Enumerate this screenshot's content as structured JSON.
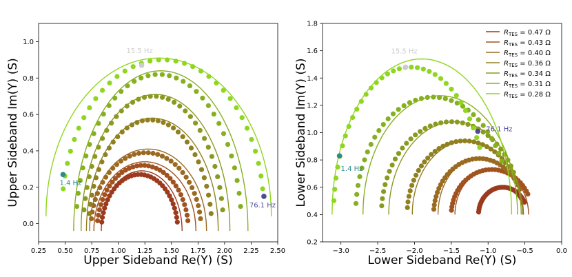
{
  "chart_data": [
    {
      "type": "scatter",
      "title": "",
      "xlabel": "Upper Sideband Re(Y) (S)",
      "ylabel": "Upper Sideband Im(Y) (S)",
      "xlim": [
        0.25,
        2.5
      ],
      "ylim": [
        -0.1,
        1.1
      ],
      "xticks": [
        0.25,
        0.5,
        0.75,
        1.0,
        1.25,
        1.5,
        1.75,
        2.0,
        2.25,
        2.5
      ],
      "xtick_labels": [
        "0.25",
        "0.50",
        "0.75",
        "1.00",
        "1.25",
        "1.50",
        "1.75",
        "2.00",
        "2.25",
        "2.50"
      ],
      "yticks": [
        0.0,
        0.2,
        0.4,
        0.6,
        0.8,
        1.0
      ],
      "ytick_labels": [
        "0.0",
        "0.2",
        "0.4",
        "0.6",
        "0.8",
        "1.0"
      ],
      "series": [
        {
          "name": "R_TES = 0.47 Ω",
          "color": "#9b3a1f",
          "data_arc": {
            "cx": 1.2,
            "cy": -0.04,
            "rx": 0.36,
            "ry": 0.31
          },
          "fit_arc": {
            "cx": 1.22,
            "cy": -0.04,
            "rx": 0.38,
            "ry": 0.33
          }
        },
        {
          "name": "R_TES = 0.43 Ω",
          "color": "#a0521f",
          "data_arc": {
            "cx": 1.23,
            "cy": -0.04,
            "rx": 0.43,
            "ry": 0.36
          },
          "fit_arc": {
            "cx": 1.25,
            "cy": -0.04,
            "rx": 0.48,
            "ry": 0.38
          }
        },
        {
          "name": "R_TES = 0.40 Ω",
          "color": "#9a6a20",
          "data_arc": {
            "cx": 1.26,
            "cy": -0.04,
            "rx": 0.52,
            "ry": 0.43
          },
          "fit_arc": {
            "cx": 1.28,
            "cy": -0.04,
            "rx": 0.55,
            "ry": 0.45
          }
        },
        {
          "name": "R_TES = 0.36 Ω",
          "color": "#908020",
          "data_arc": {
            "cx": 1.3,
            "cy": -0.04,
            "rx": 0.58,
            "ry": 0.61
          },
          "fit_arc": {
            "cx": 1.32,
            "cy": -0.04,
            "rx": 0.62,
            "ry": 0.62
          }
        },
        {
          "name": "R_TES = 0.34 Ω",
          "color": "#8a9a20",
          "data_arc": {
            "cx": 1.33,
            "cy": -0.04,
            "rx": 0.66,
            "ry": 0.74
          },
          "fit_arc": {
            "cx": 1.35,
            "cy": -0.04,
            "rx": 0.7,
            "ry": 0.75
          }
        },
        {
          "name": "R_TES = 0.31 Ω",
          "color": "#86b020",
          "data_arc": {
            "cx": 1.38,
            "cy": -0.04,
            "rx": 0.78,
            "ry": 0.86
          },
          "fit_arc": {
            "cx": 1.4,
            "cy": -0.04,
            "rx": 0.82,
            "ry": 0.88
          }
        },
        {
          "name": "R_TES = 0.28 Ω",
          "color": "#8fd61f",
          "data_arc": {
            "cx": 1.42,
            "cy": 0.06,
            "rx": 0.95,
            "ry": 0.84
          },
          "fit_arc": {
            "cx": 1.38,
            "cy": 0.04,
            "rx": 1.06,
            "ry": 0.87
          }
        }
      ],
      "markers": [
        {
          "label": "1.4 Hz",
          "x": 0.48,
          "y": 0.27,
          "color": "#2e8b8b"
        },
        {
          "label": "15.5 Hz",
          "x": 1.22,
          "y": 0.87,
          "color": "#cccccc"
        },
        {
          "label": "76.1 Hz",
          "x": 2.37,
          "y": 0.15,
          "color": "#4b4b9a"
        }
      ]
    },
    {
      "type": "scatter",
      "title": "",
      "xlabel": "Lower Sideband Re(Y) (S)",
      "ylabel": "Lower Sideband Im(Y) (S)",
      "xlim": [
        -3.25,
        0.0
      ],
      "ylim": [
        0.2,
        1.8
      ],
      "xticks": [
        -3.0,
        -2.5,
        -2.0,
        -1.5,
        -1.0,
        -0.5,
        0.0
      ],
      "xtick_labels": [
        "−3.0",
        "−2.5",
        "−2.0",
        "−1.5",
        "−1.0",
        "−0.5",
        "0.0"
      ],
      "yticks": [
        0.2,
        0.4,
        0.6,
        0.8,
        1.0,
        1.2,
        1.4,
        1.6,
        1.8
      ],
      "ytick_labels": [
        "0.2",
        "0.4",
        "0.6",
        "0.8",
        "1.0",
        "1.2",
        "1.4",
        "1.6",
        "1.8"
      ],
      "series": [
        {
          "name": "R_TES = 0.47 Ω",
          "color": "#9b3a1f",
          "data_arc": {
            "cx": -0.8,
            "cy": 0.4,
            "rx": 0.33,
            "ry": 0.2
          },
          "fit_arc": {
            "cx": -0.82,
            "cy": 0.4,
            "rx": 0.3,
            "ry": 0.2
          }
        },
        {
          "name": "R_TES = 0.43 Ω",
          "color": "#a0521f",
          "data_arc": {
            "cx": -0.95,
            "cy": 0.4,
            "rx": 0.55,
            "ry": 0.33
          },
          "fit_arc": {
            "cx": -0.95,
            "cy": 0.4,
            "rx": 0.5,
            "ry": 0.33
          }
        },
        {
          "name": "R_TES = 0.40 Ω",
          "color": "#9a6a20",
          "data_arc": {
            "cx": -1.12,
            "cy": 0.4,
            "rx": 0.62,
            "ry": 0.41
          },
          "fit_arc": {
            "cx": -1.1,
            "cy": 0.4,
            "rx": 0.58,
            "ry": 0.42
          }
        },
        {
          "name": "R_TES = 0.36 Ω",
          "color": "#908020",
          "data_arc": {
            "cx": -1.32,
            "cy": 0.4,
            "rx": 0.78,
            "ry": 0.54
          },
          "fit_arc": {
            "cx": -1.28,
            "cy": 0.4,
            "rx": 0.75,
            "ry": 0.54
          }
        },
        {
          "name": "R_TES = 0.34 Ω",
          "color": "#8a9a20",
          "data_arc": {
            "cx": -1.5,
            "cy": 0.4,
            "rx": 0.95,
            "ry": 0.68
          },
          "fit_arc": {
            "cx": -1.45,
            "cy": 0.4,
            "rx": 0.9,
            "ry": 0.68
          }
        },
        {
          "name": "R_TES = 0.31 Ω",
          "color": "#86b020",
          "data_arc": {
            "cx": -1.75,
            "cy": 0.4,
            "rx": 1.05,
            "ry": 0.86
          },
          "fit_arc": {
            "cx": -1.65,
            "cy": 0.4,
            "rx": 1.05,
            "ry": 0.87
          }
        },
        {
          "name": "R_TES = 0.28 Ω",
          "color": "#8fd61f",
          "data_arc": {
            "cx": -2.05,
            "cy": 0.4,
            "rx": 1.05,
            "ry": 1.08
          },
          "fit_arc": {
            "cx": -1.9,
            "cy": 0.4,
            "rx": 1.22,
            "ry": 1.14
          }
        }
      ],
      "markers": [
        {
          "label": "1.4 Hz",
          "x": -3.02,
          "y": 0.83,
          "color": "#2e8b8b"
        },
        {
          "label": "15.5 Hz",
          "x": -2.12,
          "y": 1.48,
          "color": "#cccccc"
        },
        {
          "label": "76.1 Hz",
          "x": -1.14,
          "y": 1.01,
          "color": "#4b4b9a"
        }
      ],
      "legend": {
        "placement": "top-right",
        "entries": [
          {
            "symbol": "R",
            "subscript": "TES",
            "text": " = 0.47 Ω",
            "color": "#9b3a1f"
          },
          {
            "symbol": "R",
            "subscript": "TES",
            "text": " = 0.43 Ω",
            "color": "#a0521f"
          },
          {
            "symbol": "R",
            "subscript": "TES",
            "text": " = 0.40 Ω",
            "color": "#9a6a20"
          },
          {
            "symbol": "R",
            "subscript": "TES",
            "text": " = 0.36 Ω",
            "color": "#908020"
          },
          {
            "symbol": "R",
            "subscript": "TES",
            "text": " = 0.34 Ω",
            "color": "#8a9a20"
          },
          {
            "symbol": "R",
            "subscript": "TES",
            "text": " = 0.31 Ω",
            "color": "#86b020"
          },
          {
            "symbol": "R",
            "subscript": "TES",
            "text": " = 0.28 Ω",
            "color": "#8fd61f"
          }
        ]
      }
    }
  ]
}
